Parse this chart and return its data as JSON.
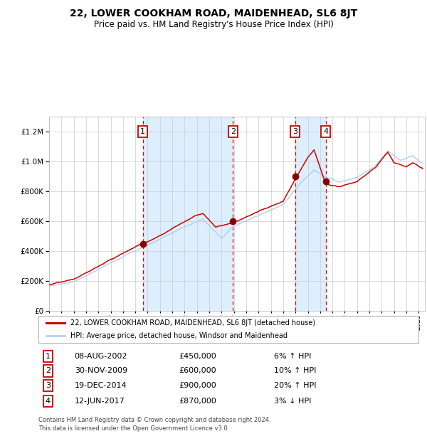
{
  "title": "22, LOWER COOKHAM ROAD, MAIDENHEAD, SL6 8JT",
  "subtitle": "Price paid vs. HM Land Registry's House Price Index (HPI)",
  "legend_line1": "22, LOWER COOKHAM ROAD, MAIDENHEAD, SL6 8JT (detached house)",
  "legend_line2": "HPI: Average price, detached house, Windsor and Maidenhead",
  "footer1": "Contains HM Land Registry data © Crown copyright and database right 2024.",
  "footer2": "This data is licensed under the Open Government Licence v3.0.",
  "transactions": [
    {
      "num": 1,
      "date": "08-AUG-2002",
      "price": 450000,
      "pct": "6%",
      "dir": "↑"
    },
    {
      "num": 2,
      "date": "30-NOV-2009",
      "price": 600000,
      "pct": "10%",
      "dir": "↑"
    },
    {
      "num": 3,
      "date": "19-DEC-2014",
      "price": 900000,
      "pct": "20%",
      "dir": "↑"
    },
    {
      "num": 4,
      "date": "12-JUN-2017",
      "price": 870000,
      "pct": "3%",
      "dir": "↓"
    }
  ],
  "transaction_dates_decimal": [
    2002.6,
    2009.92,
    2014.97,
    2017.45
  ],
  "ylim": [
    0,
    1300000
  ],
  "xlim_start": 1995.0,
  "xlim_end": 2025.5,
  "red_line_color": "#cc0000",
  "blue_line_color": "#aaccee",
  "shaded_region_color": "#ddeeff",
  "dashed_line_color": "#dd0000",
  "grid_color": "#cccccc",
  "background_color": "#ffffff",
  "dot_color": "#880000",
  "fig_width": 6.0,
  "fig_height": 6.2,
  "dpi": 100
}
